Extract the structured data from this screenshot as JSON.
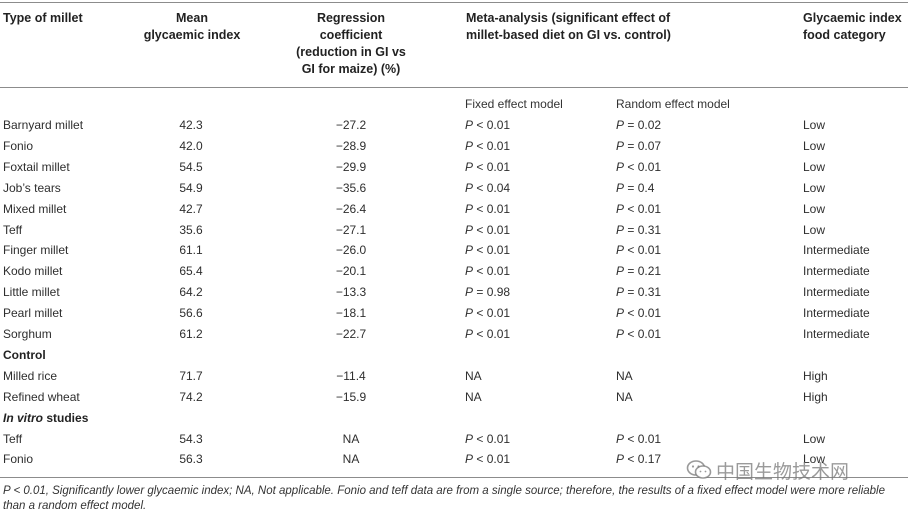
{
  "headers": {
    "type": [
      "Type of millet"
    ],
    "mean": [
      "Mean",
      "glycaemic index"
    ],
    "regression": [
      "Regression",
      "coefficient",
      "(reduction in GI vs",
      "GI for maize) (%)"
    ],
    "meta": [
      "Meta-analysis (significant effect of",
      "millet-based diet on GI vs. control)"
    ],
    "category": [
      "Glycaemic index",
      "food category"
    ]
  },
  "subheaders": {
    "fixed": "Fixed effect model",
    "random": "Random effect model"
  },
  "rows_millet": [
    [
      "Barnyard millet",
      "42.3",
      "−27.2",
      "P",
      " < 0.01",
      "P",
      " = 0.02",
      "Low"
    ],
    [
      "Fonio",
      "42.0",
      "−28.9",
      "P",
      " < 0.01",
      "P",
      " = 0.07",
      "Low"
    ],
    [
      "Foxtail millet",
      "54.5",
      "−29.9",
      "P",
      " < 0.01",
      "P",
      " < 0.01",
      "Low"
    ],
    [
      "Job’s tears",
      "54.9",
      "−35.6",
      "P",
      " < 0.04",
      "P",
      " = 0.4",
      "Low"
    ],
    [
      "Mixed millet",
      "42.7",
      "−26.4",
      "P",
      " < 0.01",
      "P",
      " < 0.01",
      "Low"
    ],
    [
      "Teff",
      "35.6",
      "−27.1",
      "P",
      " < 0.01",
      "P",
      " = 0.31",
      "Low"
    ],
    [
      "Finger millet",
      "61.1",
      "−26.0",
      "P",
      " < 0.01",
      "P",
      " < 0.01",
      "Intermediate"
    ],
    [
      "Kodo millet",
      "65.4",
      "−20.1",
      "P",
      " < 0.01",
      "P",
      " = 0.21",
      "Intermediate"
    ],
    [
      "Little millet",
      "64.2",
      "−13.3",
      "P",
      " = 0.98",
      "P",
      " = 0.31",
      "Intermediate"
    ],
    [
      "Pearl millet",
      "56.6",
      "−18.1",
      "P",
      " < 0.01",
      "P",
      " < 0.01",
      "Intermediate"
    ],
    [
      "Sorghum",
      "61.2",
      "−22.7",
      "P",
      " < 0.01",
      "P",
      " < 0.01",
      "Intermediate"
    ]
  ],
  "section_control": "Control",
  "rows_control": [
    [
      "Milled rice",
      "71.7",
      "−11.4",
      "",
      "NA",
      "",
      "NA",
      "High"
    ],
    [
      "Refined wheat",
      "74.2",
      "−15.9",
      "",
      "NA",
      "",
      "NA",
      "High"
    ]
  ],
  "section_invitro": {
    "italic": "In vitro",
    "rest": " studies"
  },
  "rows_invitro": [
    [
      "Teff",
      "54.3",
      "NA",
      "P",
      " < 0.01",
      "P",
      " < 0.01",
      "Low"
    ],
    [
      "Fonio",
      "56.3",
      "NA",
      "P",
      " < 0.01",
      "P",
      " < 0.17",
      "Low"
    ]
  ],
  "footnote": "P < 0.01, Significantly lower glycaemic index; NA, Not applicable. Fonio and teff data are from a single source; therefore, the results of a fixed effect model were more reliable than a random effect model.",
  "watermark": "中国生物技术网"
}
